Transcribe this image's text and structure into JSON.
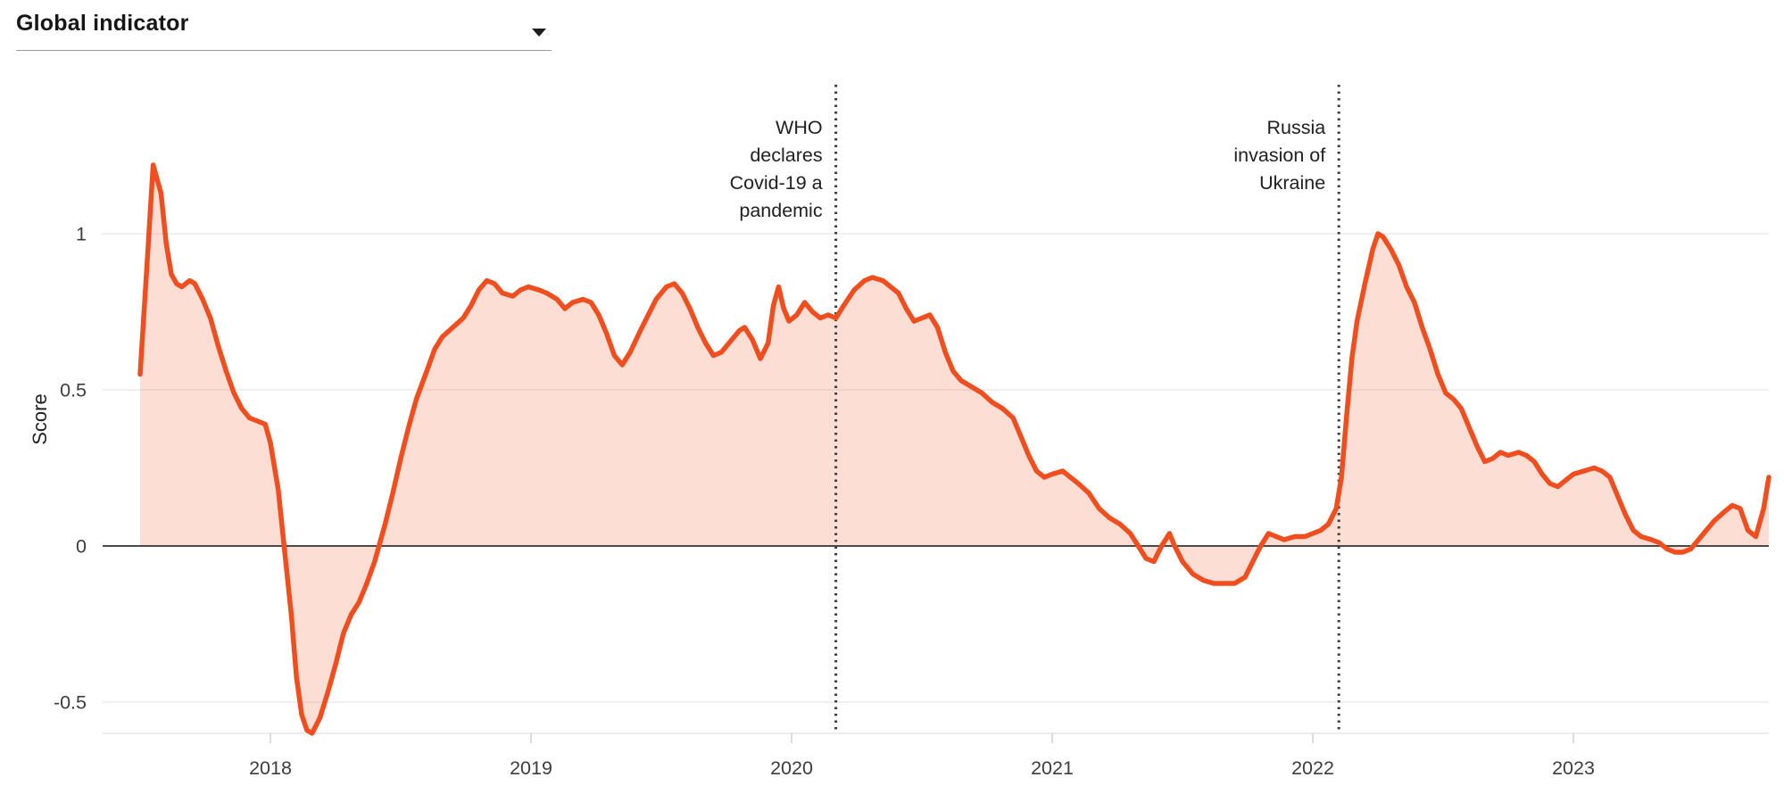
{
  "header": {
    "title": "Global indicator",
    "dropdown_icon": "caret-down"
  },
  "chart_data": {
    "type": "area",
    "title": "Global indicator",
    "ylabel": "Score",
    "xlabel": "",
    "x_ticks": [
      2018,
      2019,
      2020,
      2021,
      2022,
      2023
    ],
    "x_tick_labels": [
      "2018",
      "2019",
      "2020",
      "2021",
      "2022",
      "2023"
    ],
    "y_ticks": [
      1,
      0.5,
      0,
      -0.5
    ],
    "y_tick_labels": [
      "1",
      "0.5",
      "0",
      "-0.5"
    ],
    "xlim": [
      2017.5,
      2023.75
    ],
    "ylim": [
      -0.6,
      1.48
    ],
    "grid": "horizontal light gridlines at 1, 0.5, -0.5; dark baseline at 0",
    "legend_position": "none",
    "annotations": [
      {
        "label": "WHO declares Covid-19 a pandemic",
        "lines": [
          "WHO",
          "declares",
          "Covid-19 a",
          "pandemic"
        ],
        "x": 2020.17,
        "style": "dotted-vertical-line"
      },
      {
        "label": "Russia invasion of Ukraine",
        "lines": [
          "Russia",
          "invasion of",
          "Ukraine"
        ],
        "x": 2022.1,
        "style": "dotted-vertical-line"
      }
    ],
    "series": [
      {
        "name": "Global indicator score",
        "points": [
          [
            2017.5,
            0.55
          ],
          [
            2017.53,
            0.95
          ],
          [
            2017.55,
            1.22
          ],
          [
            2017.58,
            1.13
          ],
          [
            2017.6,
            0.97
          ],
          [
            2017.62,
            0.87
          ],
          [
            2017.64,
            0.84
          ],
          [
            2017.66,
            0.83
          ],
          [
            2017.69,
            0.85
          ],
          [
            2017.71,
            0.84
          ],
          [
            2017.74,
            0.79
          ],
          [
            2017.77,
            0.73
          ],
          [
            2017.8,
            0.64
          ],
          [
            2017.83,
            0.56
          ],
          [
            2017.86,
            0.49
          ],
          [
            2017.89,
            0.44
          ],
          [
            2017.92,
            0.41
          ],
          [
            2017.95,
            0.4
          ],
          [
            2017.98,
            0.39
          ],
          [
            2018.0,
            0.33
          ],
          [
            2018.03,
            0.18
          ],
          [
            2018.05,
            0.02
          ],
          [
            2018.08,
            -0.22
          ],
          [
            2018.1,
            -0.42
          ],
          [
            2018.12,
            -0.54
          ],
          [
            2018.14,
            -0.59
          ],
          [
            2018.16,
            -0.6
          ],
          [
            2018.19,
            -0.55
          ],
          [
            2018.22,
            -0.47
          ],
          [
            2018.25,
            -0.38
          ],
          [
            2018.28,
            -0.28
          ],
          [
            2018.31,
            -0.22
          ],
          [
            2018.34,
            -0.18
          ],
          [
            2018.37,
            -0.12
          ],
          [
            2018.4,
            -0.05
          ],
          [
            2018.44,
            0.07
          ],
          [
            2018.47,
            0.17
          ],
          [
            2018.5,
            0.28
          ],
          [
            2018.53,
            0.38
          ],
          [
            2018.56,
            0.47
          ],
          [
            2018.6,
            0.56
          ],
          [
            2018.63,
            0.63
          ],
          [
            2018.66,
            0.67
          ],
          [
            2018.7,
            0.7
          ],
          [
            2018.74,
            0.73
          ],
          [
            2018.77,
            0.77
          ],
          [
            2018.8,
            0.82
          ],
          [
            2018.83,
            0.85
          ],
          [
            2018.86,
            0.84
          ],
          [
            2018.89,
            0.81
          ],
          [
            2018.93,
            0.8
          ],
          [
            2018.96,
            0.82
          ],
          [
            2018.99,
            0.83
          ],
          [
            2019.03,
            0.82
          ],
          [
            2019.06,
            0.81
          ],
          [
            2019.1,
            0.79
          ],
          [
            2019.13,
            0.76
          ],
          [
            2019.16,
            0.78
          ],
          [
            2019.2,
            0.79
          ],
          [
            2019.23,
            0.78
          ],
          [
            2019.26,
            0.74
          ],
          [
            2019.29,
            0.68
          ],
          [
            2019.32,
            0.61
          ],
          [
            2019.35,
            0.58
          ],
          [
            2019.38,
            0.62
          ],
          [
            2019.42,
            0.69
          ],
          [
            2019.45,
            0.74
          ],
          [
            2019.48,
            0.79
          ],
          [
            2019.52,
            0.83
          ],
          [
            2019.55,
            0.84
          ],
          [
            2019.58,
            0.81
          ],
          [
            2019.61,
            0.76
          ],
          [
            2019.64,
            0.7
          ],
          [
            2019.67,
            0.65
          ],
          [
            2019.7,
            0.61
          ],
          [
            2019.73,
            0.62
          ],
          [
            2019.77,
            0.66
          ],
          [
            2019.8,
            0.69
          ],
          [
            2019.82,
            0.7
          ],
          [
            2019.85,
            0.66
          ],
          [
            2019.88,
            0.6
          ],
          [
            2019.91,
            0.65
          ],
          [
            2019.93,
            0.77
          ],
          [
            2019.95,
            0.83
          ],
          [
            2019.97,
            0.76
          ],
          [
            2019.99,
            0.72
          ],
          [
            2020.02,
            0.74
          ],
          [
            2020.05,
            0.78
          ],
          [
            2020.08,
            0.75
          ],
          [
            2020.11,
            0.73
          ],
          [
            2020.14,
            0.74
          ],
          [
            2020.17,
            0.73
          ],
          [
            2020.2,
            0.77
          ],
          [
            2020.24,
            0.82
          ],
          [
            2020.28,
            0.85
          ],
          [
            2020.31,
            0.86
          ],
          [
            2020.35,
            0.85
          ],
          [
            2020.38,
            0.83
          ],
          [
            2020.41,
            0.81
          ],
          [
            2020.44,
            0.76
          ],
          [
            2020.47,
            0.72
          ],
          [
            2020.5,
            0.73
          ],
          [
            2020.53,
            0.74
          ],
          [
            2020.56,
            0.7
          ],
          [
            2020.59,
            0.62
          ],
          [
            2020.62,
            0.56
          ],
          [
            2020.65,
            0.53
          ],
          [
            2020.69,
            0.51
          ],
          [
            2020.73,
            0.49
          ],
          [
            2020.77,
            0.46
          ],
          [
            2020.81,
            0.44
          ],
          [
            2020.85,
            0.41
          ],
          [
            2020.88,
            0.35
          ],
          [
            2020.91,
            0.29
          ],
          [
            2020.94,
            0.24
          ],
          [
            2020.97,
            0.22
          ],
          [
            2021.0,
            0.23
          ],
          [
            2021.04,
            0.24
          ],
          [
            2021.07,
            0.22
          ],
          [
            2021.1,
            0.2
          ],
          [
            2021.14,
            0.17
          ],
          [
            2021.18,
            0.12
          ],
          [
            2021.22,
            0.09
          ],
          [
            2021.26,
            0.07
          ],
          [
            2021.3,
            0.04
          ],
          [
            2021.33,
            0.0
          ],
          [
            2021.36,
            -0.04
          ],
          [
            2021.39,
            -0.05
          ],
          [
            2021.42,
            0.0
          ],
          [
            2021.45,
            0.04
          ],
          [
            2021.47,
            0.0
          ],
          [
            2021.5,
            -0.05
          ],
          [
            2021.54,
            -0.09
          ],
          [
            2021.58,
            -0.11
          ],
          [
            2021.62,
            -0.12
          ],
          [
            2021.66,
            -0.12
          ],
          [
            2021.7,
            -0.12
          ],
          [
            2021.74,
            -0.1
          ],
          [
            2021.77,
            -0.05
          ],
          [
            2021.8,
            0.0
          ],
          [
            2021.83,
            0.04
          ],
          [
            2021.86,
            0.03
          ],
          [
            2021.89,
            0.02
          ],
          [
            2021.93,
            0.03
          ],
          [
            2021.97,
            0.03
          ],
          [
            2022.0,
            0.04
          ],
          [
            2022.03,
            0.05
          ],
          [
            2022.06,
            0.07
          ],
          [
            2022.09,
            0.12
          ],
          [
            2022.11,
            0.22
          ],
          [
            2022.13,
            0.42
          ],
          [
            2022.15,
            0.6
          ],
          [
            2022.17,
            0.72
          ],
          [
            2022.2,
            0.84
          ],
          [
            2022.23,
            0.95
          ],
          [
            2022.25,
            1.0
          ],
          [
            2022.27,
            0.99
          ],
          [
            2022.3,
            0.95
          ],
          [
            2022.33,
            0.9
          ],
          [
            2022.36,
            0.83
          ],
          [
            2022.39,
            0.78
          ],
          [
            2022.42,
            0.7
          ],
          [
            2022.45,
            0.63
          ],
          [
            2022.48,
            0.55
          ],
          [
            2022.51,
            0.49
          ],
          [
            2022.54,
            0.47
          ],
          [
            2022.57,
            0.44
          ],
          [
            2022.6,
            0.38
          ],
          [
            2022.63,
            0.32
          ],
          [
            2022.66,
            0.27
          ],
          [
            2022.69,
            0.28
          ],
          [
            2022.72,
            0.3
          ],
          [
            2022.75,
            0.29
          ],
          [
            2022.79,
            0.3
          ],
          [
            2022.82,
            0.29
          ],
          [
            2022.85,
            0.27
          ],
          [
            2022.88,
            0.23
          ],
          [
            2022.91,
            0.2
          ],
          [
            2022.94,
            0.19
          ],
          [
            2022.97,
            0.21
          ],
          [
            2023.0,
            0.23
          ],
          [
            2023.04,
            0.24
          ],
          [
            2023.08,
            0.25
          ],
          [
            2023.11,
            0.24
          ],
          [
            2023.14,
            0.22
          ],
          [
            2023.17,
            0.16
          ],
          [
            2023.2,
            0.1
          ],
          [
            2023.23,
            0.05
          ],
          [
            2023.26,
            0.03
          ],
          [
            2023.3,
            0.02
          ],
          [
            2023.33,
            0.01
          ],
          [
            2023.36,
            -0.01
          ],
          [
            2023.39,
            -0.02
          ],
          [
            2023.42,
            -0.02
          ],
          [
            2023.45,
            -0.01
          ],
          [
            2023.48,
            0.02
          ],
          [
            2023.51,
            0.05
          ],
          [
            2023.54,
            0.08
          ],
          [
            2023.58,
            0.11
          ],
          [
            2023.61,
            0.13
          ],
          [
            2023.64,
            0.12
          ],
          [
            2023.67,
            0.05
          ],
          [
            2023.7,
            0.03
          ],
          [
            2023.73,
            0.12
          ],
          [
            2023.75,
            0.22
          ]
        ]
      }
    ],
    "colors": {
      "line": "#f04e1f",
      "area_fill": "rgba(240,78,31,0.19)",
      "zero_line": "#4a4a4a",
      "gridline": "#e7e7e7",
      "axis_line": "#e2e2e2",
      "tick_mark": "#cfcfcf",
      "tick_text": "#3d3d3d",
      "annotation_line": "#3b3b3b",
      "annotation_text": "#212121"
    }
  }
}
